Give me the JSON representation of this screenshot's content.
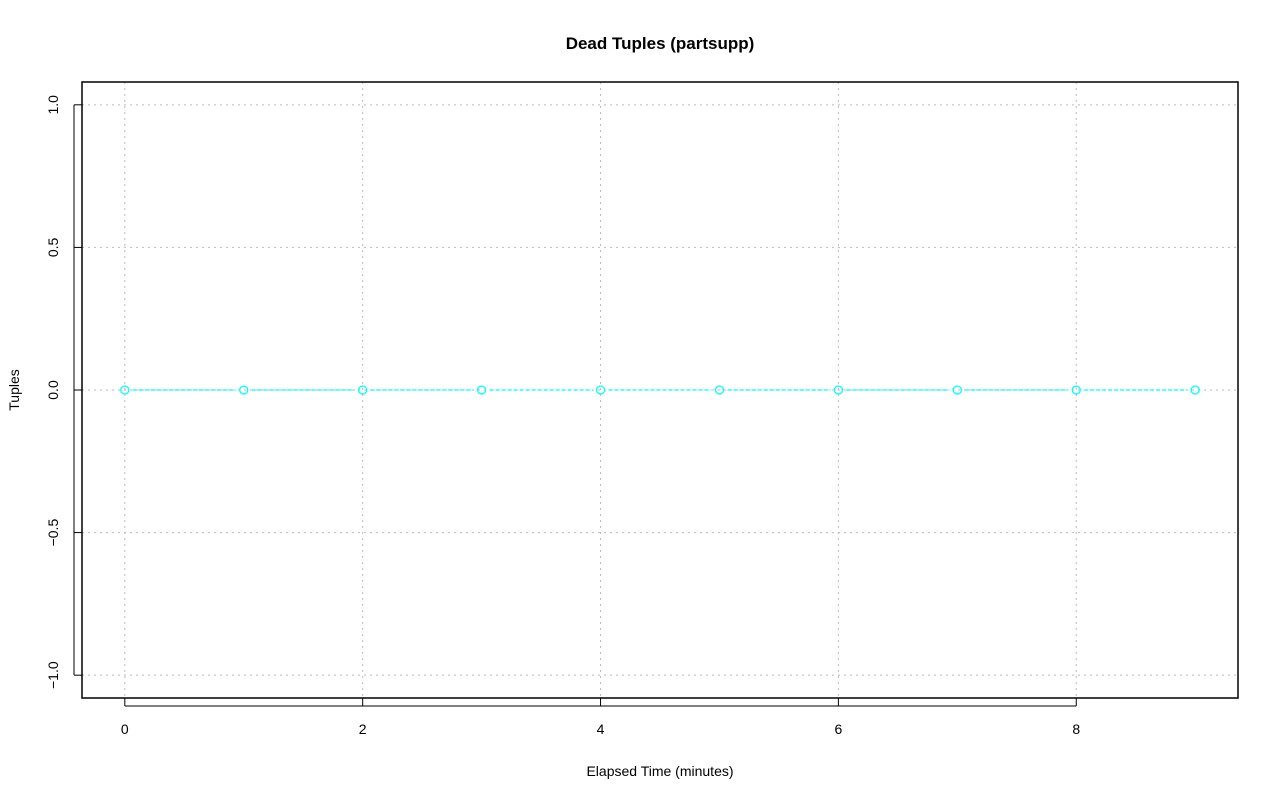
{
  "chart_data": {
    "type": "line",
    "title": "Dead Tuples (partsupp)",
    "xlabel": "Elapsed Time (minutes)",
    "ylabel": "Tuples",
    "xlim": [
      -0.36,
      9.36
    ],
    "ylim": [
      -1.08,
      1.08
    ],
    "xticks": [
      0,
      2,
      4,
      6,
      8
    ],
    "yticks": [
      -1.0,
      -0.5,
      0.0,
      0.5,
      1.0
    ],
    "xtick_labels": [
      "0",
      "2",
      "4",
      "6",
      "8"
    ],
    "ytick_labels": [
      "−1.0",
      "−0.5",
      "0.0",
      "0.5",
      "1.0"
    ],
    "grid": true,
    "series": [
      {
        "x": [
          0,
          1,
          2,
          3,
          4,
          5,
          6,
          7,
          8,
          9
        ],
        "y": [
          0,
          0,
          0,
          0,
          0,
          0,
          0,
          0,
          0,
          0
        ],
        "color": "#00ffff",
        "marker": "circle-open",
        "line": "dashed"
      }
    ]
  }
}
